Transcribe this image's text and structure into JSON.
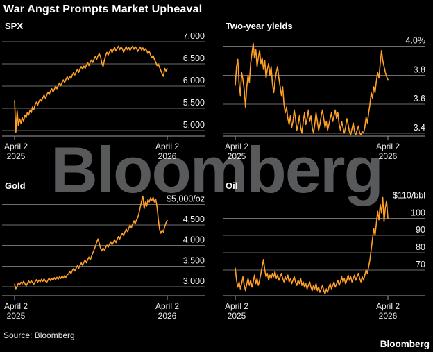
{
  "title": "War Angst Prompts Market Upheaval",
  "watermark": "Bloomberg",
  "source": "Source: Bloomberg",
  "logo": "Bloomberg",
  "colors": {
    "background": "#000000",
    "line": "#FFA028",
    "grid": "#6e6e6e",
    "axis": "#a0a0a0",
    "text": "#ffffff",
    "tick_text": "#f2f2f2",
    "watermark": "#58595b"
  },
  "chart_data": [
    {
      "type": "line",
      "id": "spx",
      "title": "SPX",
      "legend_position": "none",
      "grid": true,
      "x_ticks": [
        [
          "April 2",
          "2025"
        ],
        [
          "April 2",
          "2026"
        ]
      ],
      "y_ticks": [
        {
          "v": 7000,
          "label": "7,000"
        },
        {
          "v": 6500,
          "label": "6,500"
        },
        {
          "v": 6000,
          "label": "6,000"
        },
        {
          "v": 5500,
          "label": "5,500"
        },
        {
          "v": 5000,
          "label": "5,000"
        }
      ],
      "ylim": [
        4875,
        7125
      ],
      "values": [
        5670,
        4960,
        5440,
        5110,
        5260,
        5160,
        5290,
        5200,
        5350,
        5290,
        5410,
        5350,
        5460,
        5400,
        5530,
        5470,
        5580,
        5640,
        5570,
        5650,
        5710,
        5660,
        5740,
        5800,
        5730,
        5790,
        5860,
        5810,
        5890,
        5940,
        5870,
        5930,
        5990,
        5940,
        6010,
        6070,
        6010,
        6080,
        6140,
        6080,
        6150,
        6210,
        6150,
        6220,
        6170,
        6250,
        6310,
        6250,
        6320,
        6380,
        6310,
        6390,
        6440,
        6380,
        6450,
        6400,
        6470,
        6530,
        6460,
        6540,
        6590,
        6530,
        6610,
        6670,
        6600,
        6680,
        6730,
        6660,
        6520,
        6440,
        6580,
        6690,
        6760,
        6700,
        6770,
        6830,
        6750,
        6820,
        6870,
        6790,
        6850,
        6900,
        6820,
        6880,
        6840,
        6760,
        6830,
        6890,
        6820,
        6870,
        6800,
        6860,
        6900,
        6830,
        6890,
        6850,
        6780,
        6840,
        6880,
        6810,
        6860,
        6790,
        6840,
        6800,
        6730,
        6780,
        6700,
        6640,
        6690,
        6600,
        6540,
        6460,
        6500,
        6420,
        6350,
        6280,
        6220,
        6400,
        6340,
        6390
      ]
    },
    {
      "type": "line",
      "id": "two-year-yields",
      "title": "Two-year yields",
      "legend_position": "none",
      "grid": true,
      "x_ticks": [
        [
          "April 2",
          "2025"
        ],
        [
          "April 2",
          "2026"
        ]
      ],
      "y_ticks": [
        {
          "v": 4.0,
          "label": "4.0%"
        },
        {
          "v": 3.8,
          "label": "3.8"
        },
        {
          "v": 3.6,
          "label": "3.6"
        },
        {
          "v": 3.4,
          "label": "3.4"
        }
      ],
      "ylim": [
        3.38,
        4.07
      ],
      "values": [
        3.73,
        3.86,
        3.91,
        3.74,
        3.66,
        3.82,
        3.77,
        3.7,
        3.58,
        3.72,
        3.8,
        3.75,
        3.88,
        3.95,
        4.02,
        3.92,
        3.98,
        3.86,
        3.92,
        3.97,
        3.88,
        3.92,
        3.84,
        3.9,
        3.78,
        3.84,
        3.88,
        3.8,
        3.86,
        3.74,
        3.68,
        3.76,
        3.82,
        3.86,
        3.78,
        3.72,
        3.66,
        3.72,
        3.6,
        3.54,
        3.58,
        3.5,
        3.46,
        3.52,
        3.44,
        3.48,
        3.56,
        3.5,
        3.42,
        3.46,
        3.52,
        3.44,
        3.4,
        3.48,
        3.54,
        3.46,
        3.5,
        3.56,
        3.48,
        3.52,
        3.44,
        3.4,
        3.46,
        3.54,
        3.48,
        3.42,
        3.46,
        3.52,
        3.56,
        3.5,
        3.44,
        3.48,
        3.42,
        3.46,
        3.5,
        3.54,
        3.48,
        3.52,
        3.56,
        3.5,
        3.54,
        3.46,
        3.42,
        3.48,
        3.44,
        3.4,
        3.44,
        3.5,
        3.46,
        3.41,
        3.39,
        3.43,
        3.47,
        3.41,
        3.39,
        3.42,
        3.45,
        3.4,
        3.39,
        3.41,
        3.4,
        3.44,
        3.51,
        3.47,
        3.54,
        3.6,
        3.68,
        3.64,
        3.72,
        3.68,
        3.76,
        3.82,
        3.78,
        3.88,
        3.97,
        3.9,
        3.86,
        3.82,
        3.79,
        3.77
      ]
    },
    {
      "type": "line",
      "id": "gold",
      "title": "Gold",
      "legend_position": "none",
      "grid": true,
      "x_ticks": [
        [
          "April 2",
          "2025"
        ],
        [
          "April 2",
          "2026"
        ]
      ],
      "y_ticks": [
        {
          "v": 5000,
          "label": "$5,000/oz"
        },
        {
          "v": 4500,
          "label": "4,500"
        },
        {
          "v": 4000,
          "label": "4,000"
        },
        {
          "v": 3500,
          "label": "3,500"
        },
        {
          "v": 3000,
          "label": "3,000"
        }
      ],
      "ylim": [
        2780,
        5210
      ],
      "values": [
        3060,
        2950,
        3010,
        3090,
        3050,
        3110,
        3070,
        3130,
        3080,
        3020,
        3080,
        3140,
        3090,
        3150,
        3100,
        3060,
        3120,
        3170,
        3110,
        3160,
        3120,
        3180,
        3130,
        3190,
        3140,
        3100,
        3160,
        3210,
        3150,
        3200,
        3160,
        3220,
        3170,
        3230,
        3180,
        3240,
        3200,
        3260,
        3210,
        3270,
        3230,
        3290,
        3310,
        3370,
        3320,
        3390,
        3440,
        3380,
        3450,
        3510,
        3450,
        3520,
        3580,
        3520,
        3590,
        3650,
        3580,
        3660,
        3720,
        3650,
        3740,
        3820,
        3900,
        3980,
        4080,
        4160,
        4060,
        3930,
        3870,
        3940,
        3890,
        3950,
        4010,
        3960,
        4030,
        4090,
        4020,
        4080,
        4140,
        4070,
        4150,
        4220,
        4160,
        4240,
        4300,
        4240,
        4330,
        4400,
        4340,
        4420,
        4500,
        4430,
        4520,
        4600,
        4530,
        4620,
        4680,
        4790,
        4940,
        5080,
        5200,
        4900,
        5060,
        4960,
        5120,
        5060,
        5160,
        5100,
        5170,
        5060,
        5130,
        4950,
        4650,
        4400,
        4300,
        4380,
        4330,
        4460,
        4550,
        4610
      ]
    },
    {
      "type": "line",
      "id": "oil",
      "title": "Oil",
      "legend_position": "none",
      "grid": true,
      "x_ticks": [
        [
          "April 2",
          "2025"
        ],
        [
          "April 2",
          "2026"
        ]
      ],
      "y_ticks": [
        {
          "v": 110,
          "label": "$110/bbl"
        },
        {
          "v": 100,
          "label": "100"
        },
        {
          "v": 90,
          "label": "90"
        },
        {
          "v": 80,
          "label": "80"
        },
        {
          "v": 70,
          "label": "70"
        }
      ],
      "ylim": [
        55,
        113
      ],
      "values": [
        71,
        64,
        60,
        63,
        59,
        62,
        66,
        61,
        58,
        62,
        65,
        61,
        64,
        60,
        63,
        67,
        62,
        65,
        61,
        64,
        68,
        72,
        76,
        70,
        66,
        68,
        64,
        67,
        65,
        68,
        66,
        69,
        65,
        67,
        64,
        66,
        68,
        65,
        63,
        66,
        64,
        67,
        63,
        65,
        62,
        64,
        66,
        63,
        61,
        64,
        62,
        65,
        61,
        63,
        60,
        62,
        59,
        61,
        63,
        60,
        58,
        61,
        59,
        62,
        58,
        60,
        57,
        59,
        61,
        58,
        56,
        59,
        57,
        60,
        62,
        59,
        61,
        63,
        60,
        62,
        64,
        61,
        63,
        66,
        63,
        65,
        62,
        64,
        67,
        64,
        66,
        63,
        65,
        67,
        64,
        66,
        68,
        65,
        63,
        66,
        64,
        67,
        70,
        68,
        72,
        76,
        82,
        88,
        94,
        90,
        97,
        104,
        99,
        108,
        103,
        112,
        98,
        106,
        110,
        100
      ]
    }
  ]
}
